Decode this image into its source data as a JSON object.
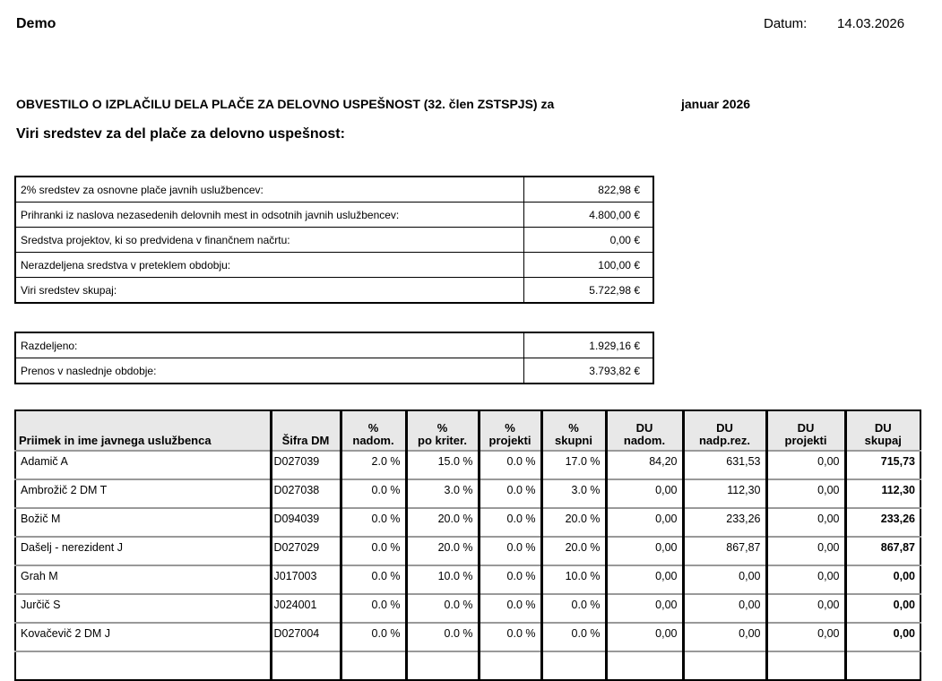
{
  "header": {
    "company": "Demo",
    "date_label": "Datum:",
    "date": "14.03.2026"
  },
  "title": "OBVESTILO O IZPLAČILU DELA PLAČE ZA DELOVNO USPEŠNOST (32. člen ZSTSPJS) za",
  "period": "januar 2026",
  "subtitle": "Viri sredstev za del plače za delovno uspešnost:",
  "sources": [
    {
      "label": "2% sredstev za osnovne plače javnih uslužbencev:",
      "value": "822,98 €"
    },
    {
      "label": "Prihranki iz naslova nezasedenih delovnih mest in odsotnih javnih uslužbencev:",
      "value": "4.800,00 €"
    },
    {
      "label": "Sredstva projektov, ki so predvidena v finančnem načrtu:",
      "value": "0,00 €"
    },
    {
      "label": "Nerazdeljena sredstva v preteklem obdobju:",
      "value": "100,00 €"
    },
    {
      "label": "Viri sredstev skupaj:",
      "value": "5.722,98 €"
    }
  ],
  "distribution": [
    {
      "label": "Razdeljeno:",
      "value": "1.929,16 €"
    },
    {
      "label": "Prenos v naslednje obdobje:",
      "value": "3.793,82 €"
    }
  ],
  "table": {
    "columns": [
      [
        "",
        "Priimek in ime javnega uslužbenca"
      ],
      [
        "",
        "Šifra DM"
      ],
      [
        "%",
        "nadom."
      ],
      [
        "%",
        "po kriter."
      ],
      [
        "%",
        "projekti"
      ],
      [
        "%",
        "skupni"
      ],
      [
        "DU",
        "nadom."
      ],
      [
        "DU",
        "nadp.rez."
      ],
      [
        "DU",
        "projekti"
      ],
      [
        "DU",
        "skupaj"
      ]
    ],
    "rows": [
      [
        "Adamič A",
        "D027039",
        "2.0 %",
        "15.0 %",
        "0.0 %",
        "17.0 %",
        "84,20",
        "631,53",
        "0,00",
        "715,73"
      ],
      [
        "Ambrožič 2 DM  T",
        "D027038",
        "0.0 %",
        "3.0 %",
        "0.0 %",
        "3.0 %",
        "0,00",
        "112,30",
        "0,00",
        "112,30"
      ],
      [
        "Božič M",
        "D094039",
        "0.0 %",
        "20.0 %",
        "0.0 %",
        "20.0 %",
        "0,00",
        "233,26",
        "0,00",
        "233,26"
      ],
      [
        "Dašelj - nerezident J",
        "D027029",
        "0.0 %",
        "20.0 %",
        "0.0 %",
        "20.0 %",
        "0,00",
        "867,87",
        "0,00",
        "867,87"
      ],
      [
        "Grah M",
        "J017003",
        "0.0 %",
        "10.0 %",
        "0.0 %",
        "10.0 %",
        "0,00",
        "0,00",
        "0,00",
        "0,00"
      ],
      [
        "Jurčič S",
        "J024001",
        "0.0 %",
        "0.0 %",
        "0.0 %",
        "0.0 %",
        "0,00",
        "0,00",
        "0,00",
        "0,00"
      ],
      [
        "Kovačevič 2 DM J",
        "D027004",
        "0.0 %",
        "0.0 %",
        "0.0 %",
        "0.0 %",
        "0,00",
        "0,00",
        "0,00",
        "0,00"
      ],
      [
        "",
        "",
        "",
        "",
        "",
        "",
        "",
        "",
        "",
        ""
      ]
    ]
  }
}
